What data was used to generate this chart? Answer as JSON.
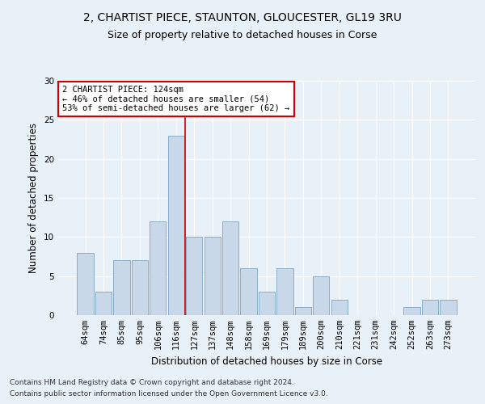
{
  "title": "2, CHARTIST PIECE, STAUNTON, GLOUCESTER, GL19 3RU",
  "subtitle": "Size of property relative to detached houses in Corse",
  "xlabel": "Distribution of detached houses by size in Corse",
  "ylabel": "Number of detached properties",
  "categories": [
    "64sqm",
    "74sqm",
    "85sqm",
    "95sqm",
    "106sqm",
    "116sqm",
    "127sqm",
    "137sqm",
    "148sqm",
    "158sqm",
    "169sqm",
    "179sqm",
    "189sqm",
    "200sqm",
    "210sqm",
    "221sqm",
    "231sqm",
    "242sqm",
    "252sqm",
    "263sqm",
    "273sqm"
  ],
  "values": [
    8,
    3,
    7,
    7,
    12,
    23,
    10,
    10,
    12,
    6,
    3,
    6,
    1,
    5,
    2,
    0,
    0,
    0,
    1,
    2,
    2
  ],
  "bar_color": "#c8d8e8",
  "bar_edge_color": "#8aadc8",
  "marker_index": 6,
  "marker_line_color": "#cc0000",
  "annotation_text": "2 CHARTIST PIECE: 124sqm\n← 46% of detached houses are smaller (54)\n53% of semi-detached houses are larger (62) →",
  "annotation_box_color": "#ffffff",
  "annotation_box_edge": "#cc0000",
  "ylim": [
    0,
    30
  ],
  "footer1": "Contains HM Land Registry data © Crown copyright and database right 2024.",
  "footer2": "Contains public sector information licensed under the Open Government Licence v3.0.",
  "bg_color": "#e8f0f8",
  "plot_bg_color": "#e8f0f8",
  "title_fontsize": 10,
  "subtitle_fontsize": 9,
  "axis_label_fontsize": 8.5,
  "tick_fontsize": 7.5,
  "footer_fontsize": 6.5
}
